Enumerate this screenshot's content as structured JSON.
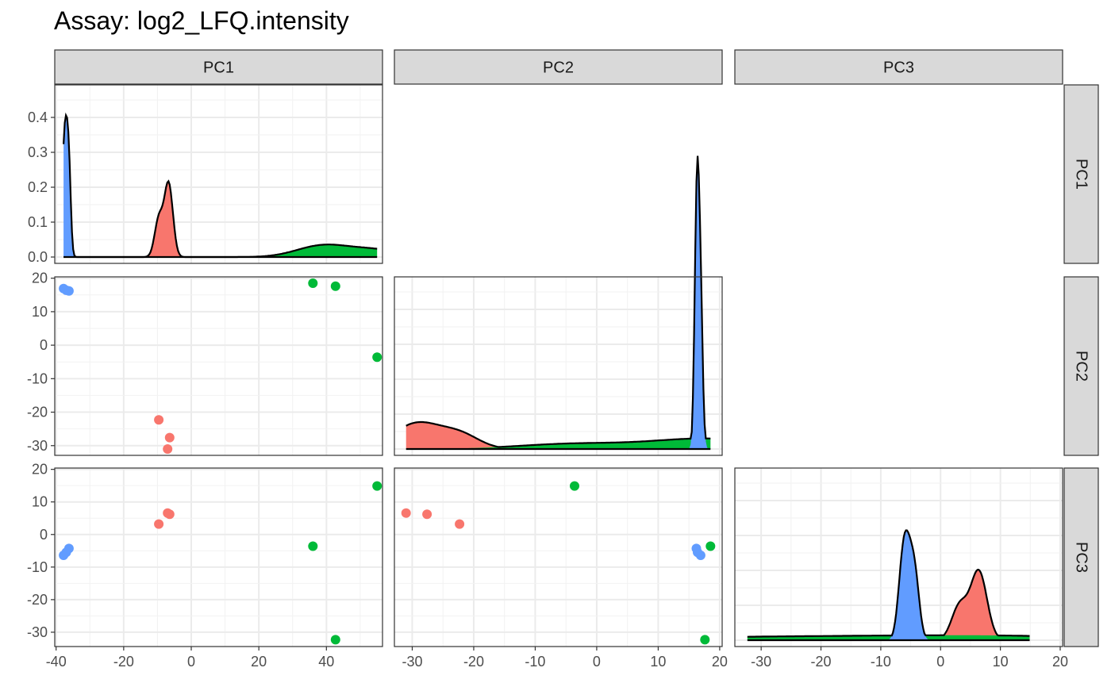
{
  "chart_data": {
    "type": "scatter-matrix",
    "title": "Assay: log2_LFQ.intensity",
    "variables": [
      "PC1",
      "PC2",
      "PC3"
    ],
    "axis_ranges": {
      "PC1": [
        -40.4,
        56.6
      ],
      "PC2": [
        -32.9,
        20.4
      ],
      "PC3": [
        -34.4,
        20.4
      ]
    },
    "ticks": {
      "PC1": [
        -40,
        -20,
        0,
        20,
        40
      ],
      "PC2": [
        -30,
        -20,
        -10,
        0,
        10,
        20
      ],
      "PC3": [
        -30,
        -20,
        -10,
        0,
        10,
        20
      ]
    },
    "tick_labels": {
      "PC1": [
        "-40",
        "-20",
        "0",
        "20",
        "40"
      ],
      "PC2": [
        "-30",
        "-20",
        "-10",
        "0",
        "10",
        "20"
      ],
      "PC3": [
        "-30",
        "-20",
        "-10",
        "0",
        "10",
        "20"
      ]
    },
    "density_ticks": [
      0.0,
      0.1,
      0.2,
      0.3,
      0.4
    ],
    "density_tick_labels": [
      "0.0",
      "0.1",
      "0.2",
      "0.3",
      "0.4"
    ],
    "density_max": 0.475,
    "groups": [
      {
        "color": "#F8766D",
        "points": [
          {
            "PC1": -9.6,
            "PC2": -22.3,
            "PC3": 3.2
          },
          {
            "PC1": -6.4,
            "PC2": -27.6,
            "PC3": 6.2
          },
          {
            "PC1": -7.0,
            "PC2": -31.0,
            "PC3": 6.6
          }
        ]
      },
      {
        "color": "#00BA38",
        "points": [
          {
            "PC1": 36.0,
            "PC2": 18.5,
            "PC3": -3.6
          },
          {
            "PC1": 42.7,
            "PC2": 17.6,
            "PC3": -32.3
          },
          {
            "PC1": 55.0,
            "PC2": -3.6,
            "PC3": 14.9
          }
        ]
      },
      {
        "color": "#619CFF",
        "points": [
          {
            "PC1": -37.8,
            "PC2": 16.9,
            "PC3": -6.4
          },
          {
            "PC1": -37.0,
            "PC2": 16.4,
            "PC3": -5.5
          },
          {
            "PC1": -36.2,
            "PC2": 16.2,
            "PC3": -4.3
          }
        ]
      }
    ],
    "grid": true,
    "legend": "none"
  }
}
